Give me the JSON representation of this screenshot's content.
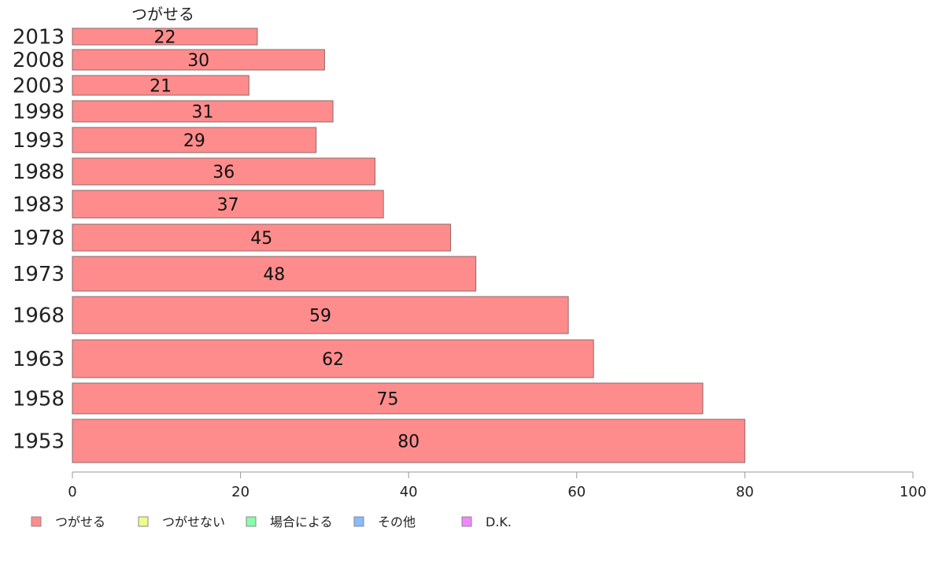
{
  "chart_data": {
    "type": "bar",
    "orientation": "horizontal",
    "series_header": "つがせる",
    "categories": [
      "2013",
      "2008",
      "2003",
      "1998",
      "1993",
      "1988",
      "1983",
      "1978",
      "1973",
      "1968",
      "1963",
      "1958",
      "1953"
    ],
    "series": [
      {
        "name": "つがせる",
        "values": [
          22,
          30,
          21,
          31,
          29,
          36,
          37,
          45,
          48,
          59,
          62,
          75,
          80
        ],
        "color": "#ff8c8c"
      }
    ],
    "xlim": [
      0,
      100
    ],
    "xticks": [
      0,
      20,
      40,
      60,
      80,
      100
    ],
    "legend": {
      "placement": "bottom-left",
      "items": [
        {
          "label": "つがせる",
          "color": "#ff8c8c"
        },
        {
          "label": "つがせない",
          "color": "#eeff88"
        },
        {
          "label": "場合による",
          "color": "#88ffaa"
        },
        {
          "label": "その他",
          "color": "#88bbff"
        },
        {
          "label": "D.K.",
          "color": "#ee88ff"
        }
      ]
    },
    "grid": false
  }
}
